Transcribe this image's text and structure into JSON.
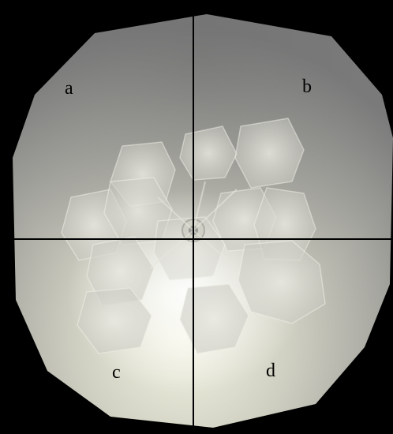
{
  "figure": {
    "background_color": "#000000",
    "object": "bouquet-of-white-roses-in-rounded-shell",
    "crosshair_color": "#000000",
    "quadrant_labels": {
      "a": "a",
      "b": "b",
      "c": "c",
      "d": "d"
    }
  }
}
